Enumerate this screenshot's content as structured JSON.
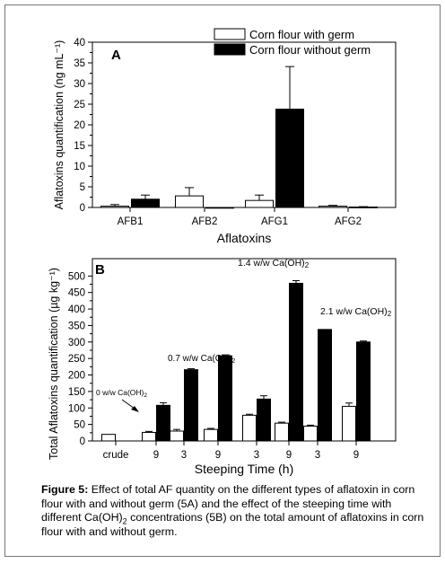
{
  "chart_data": [
    {
      "panel": "A",
      "type": "bar",
      "xlabel": "Aflatoxins",
      "ylabel": "Aflatoxins quantification (ng mL⁻¹)",
      "categories": [
        "AFB1",
        "AFB2",
        "AFG1",
        "AFG2"
      ],
      "ylim": [
        0,
        40
      ],
      "yticks": [
        "0",
        "5",
        "10",
        "15",
        "20",
        "25",
        "30",
        "35",
        "40"
      ],
      "legend_position": "top-right",
      "series": [
        {
          "name": "Corn flour with germ",
          "color": "#ffffff",
          "values": [
            0.3,
            2.8,
            1.7,
            0.3
          ],
          "errors": [
            0.4,
            2.0,
            1.3,
            0.2
          ]
        },
        {
          "name": "Corn flour without germ",
          "color": "#000000",
          "values": [
            2.0,
            0.0,
            23.8,
            0.1
          ],
          "errors": [
            1.0,
            0.0,
            10.3,
            0.1
          ]
        }
      ]
    },
    {
      "panel": "B",
      "type": "bar",
      "xlabel": "Steeping Time (h)",
      "ylabel": "Total Aflatoxins quantification (µg kg⁻¹)",
      "categories": [
        "crude",
        "9",
        "3",
        "9",
        "3",
        "9",
        "3",
        "9"
      ],
      "ylim": [
        0,
        520
      ],
      "yticks": [
        "0",
        "50",
        "100",
        "150",
        "200",
        "250",
        "300",
        "350",
        "400",
        "450",
        "500"
      ],
      "series": [
        {
          "name": "Corn flour with germ",
          "color": "#ffffff",
          "values": [
            20,
            26,
            30,
            35,
            78,
            54,
            45,
            105
          ],
          "errors": [
            0,
            3,
            5,
            3,
            3,
            3,
            3,
            10
          ]
        },
        {
          "name": "Corn flour without germ",
          "color": "#000000",
          "values": [
            null,
            108,
            216,
            258,
            127,
            478,
            338,
            300
          ],
          "errors": [
            0,
            8,
            3,
            3,
            10,
            8,
            0,
            3
          ]
        }
      ],
      "annotations": [
        {
          "text": "0 w/w Ca(OH)",
          "sub": "2"
        },
        {
          "text": "0.7 w/w Ca(OH)",
          "sub": "2"
        },
        {
          "text": "1.4 w/w Ca(OH)",
          "sub": "2"
        },
        {
          "text": "2.1 w/w Ca(OH)",
          "sub": "2"
        }
      ]
    }
  ],
  "caption": {
    "label": "Figure 5:",
    "part1": " Effect of total AF quantity on the different types of aflatoxin in corn flour with and without germ (5A) and the effect of the steeping time with different Ca(OH)",
    "sub": "2",
    "part2": " concentrations (5B) on the total amount of aflatoxins in corn flour with and without germ."
  }
}
